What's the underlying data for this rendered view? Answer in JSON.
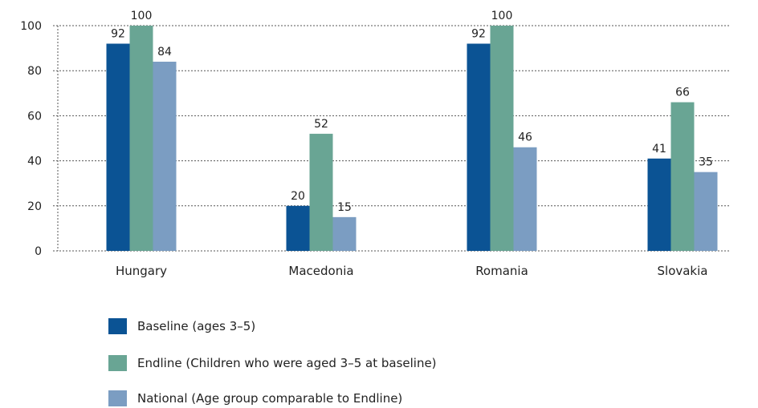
{
  "chart_data": {
    "type": "bar",
    "categories": [
      "Hungary",
      "Macedonia",
      "Romania",
      "Slovakia"
    ],
    "series": [
      {
        "name": "Baseline (ages 3–5)",
        "values": [
          92,
          20,
          92,
          41
        ]
      },
      {
        "name": "Endline (Children who were aged 3–5 at baseline)",
        "values": [
          100,
          52,
          100,
          66
        ]
      },
      {
        "name": "National (Age group comparable to Endline)",
        "values": [
          84,
          15,
          46,
          35
        ]
      }
    ],
    "y_ticks": [
      "0",
      "20",
      "40",
      "60",
      "80",
      "100"
    ],
    "ylim": [
      0,
      100
    ],
    "grid": true,
    "legend_position": "bottom"
  },
  "colors": {
    "baseline": "#0b5394",
    "endline": "#69a594",
    "national": "#7b9dc2",
    "grid": "#555555"
  }
}
